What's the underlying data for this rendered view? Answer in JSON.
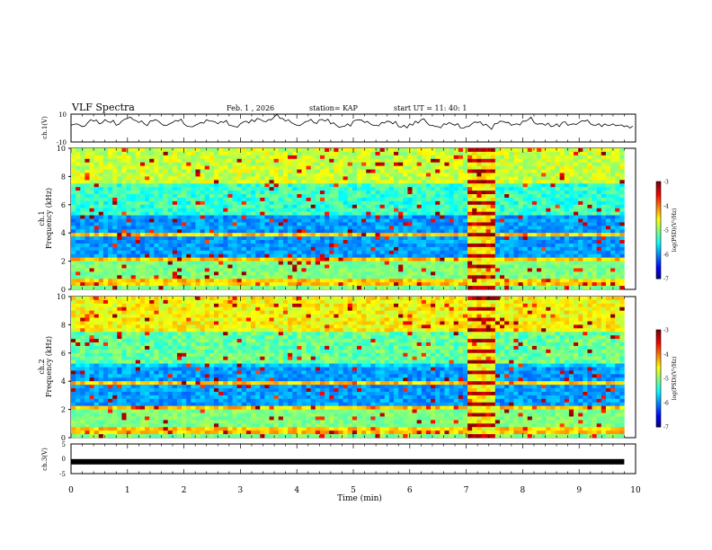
{
  "header": {
    "title": "VLF Spectra",
    "date": "Feb. 1 , 2026",
    "station": "station= KAP",
    "start_ut": "start  UT =   11: 40: 1"
  },
  "chart_data": [
    {
      "type": "line",
      "name": "ch1-waveform",
      "ylabel": "ch.1(V)",
      "ylim": [
        -10,
        10
      ],
      "yticks": [
        "10",
        "-10"
      ],
      "xlim": [
        0,
        9.8
      ],
      "x_step_min": 0.1,
      "values": [
        2,
        3,
        1,
        4,
        5,
        3,
        6,
        4,
        2,
        5,
        7,
        6,
        4,
        3,
        5,
        6,
        3,
        2,
        4,
        5,
        3,
        1,
        2,
        4,
        6,
        5,
        3,
        4,
        2,
        1,
        3,
        5,
        6,
        7,
        5,
        6,
        8,
        7,
        5,
        4,
        2,
        3,
        5,
        4,
        6,
        5,
        3,
        2,
        1,
        3,
        5,
        6,
        4,
        3,
        2,
        4,
        5,
        3,
        1,
        2,
        3,
        5,
        6,
        4,
        2,
        1,
        3,
        4,
        2,
        0,
        1,
        3,
        4,
        2,
        1,
        3,
        5,
        4,
        2,
        3,
        5,
        6,
        4,
        3,
        2,
        1,
        3,
        4,
        2,
        3,
        4,
        5,
        3,
        2,
        1,
        2,
        3,
        2,
        1,
        0
      ]
    },
    {
      "type": "heatmap",
      "name": "ch1-spectrogram",
      "ylabel": "ch.1\nFrequency (kHz)",
      "ylim": [
        0,
        10
      ],
      "yticks": [
        "0",
        "2",
        "4",
        "6",
        "8",
        "10"
      ],
      "xlim": [
        0,
        9.8
      ],
      "colorbar": {
        "label": "log(PSD)(V²/Hz)",
        "range": [
          -7,
          -3
        ],
        "ticks": [
          "-3",
          "-4",
          "-5",
          "-6",
          "-7"
        ]
      }
    },
    {
      "type": "heatmap",
      "name": "ch2-spectrogram",
      "ylabel": "ch.2\nFrequency (kHz)",
      "ylim": [
        0,
        10
      ],
      "yticks": [
        "0",
        "2",
        "4",
        "6",
        "8",
        "10"
      ],
      "xlim": [
        0,
        9.8
      ],
      "colorbar": {
        "label": "log(PSD)(V²/Hz)",
        "range": [
          -7,
          -3
        ],
        "ticks": [
          "-3",
          "-4",
          "-5",
          "-6",
          "-7"
        ]
      }
    },
    {
      "type": "line",
      "name": "ch3-waveform",
      "ylabel": "ch.3(V)",
      "ylim": [
        -5,
        5
      ],
      "yticks": [
        "5",
        "0",
        "-5"
      ],
      "xlim": [
        0,
        9.8
      ],
      "values": [
        -1,
        -1
      ]
    }
  ],
  "x_axis": {
    "label": "Time  (min)",
    "range": [
      0,
      10
    ],
    "ticks": [
      "0",
      "1",
      "2",
      "3",
      "4",
      "5",
      "6",
      "7",
      "8",
      "9",
      "10"
    ]
  }
}
